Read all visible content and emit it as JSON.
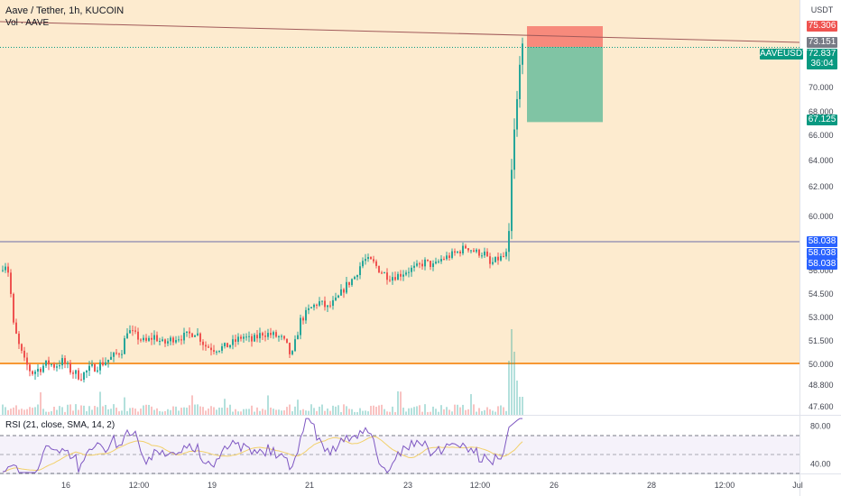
{
  "header": {
    "title": "Aave / Tether, 1h, KUCOIN",
    "volume_label": "Vol · AAVE",
    "rsi_label": "RSI (21, close, SMA, 14, 2)"
  },
  "currency": "USDT",
  "symbol_tag": "AAVEUSDT",
  "countdown": "36:04",
  "colors": {
    "up": "#26a69a",
    "down": "#ef5350",
    "target_zone": "#80c4a4",
    "stop_zone": "#f78a7c",
    "highlight_bg": "#fdebcf",
    "trendline": "#a15a5a",
    "support_line": "#f57c00",
    "resistance_line": "#6a6ea8",
    "blue_tag": "#2962ff",
    "green_tag": "#089981",
    "rsi_line": "#7e57c2",
    "rsi_ma": "#f2d06b"
  },
  "chart_data": {
    "type": "candlestick",
    "price_axis": {
      "ticks": [
        "70.000",
        "68.000",
        "66.000",
        "64.000",
        "62.000",
        "60.000",
        "56.000",
        "54.500",
        "53.000",
        "51.500",
        "50.000",
        "48.800",
        "47.600"
      ],
      "tick_values": [
        70,
        68,
        66,
        64,
        62,
        60,
        56,
        54.5,
        53,
        51.5,
        50,
        48.8,
        47.6
      ]
    },
    "x_axis": {
      "labels": [
        "16",
        "12:00",
        "19",
        "21",
        "23",
        "12:00",
        "26",
        "28",
        "12:00",
        "Jul"
      ]
    },
    "price_labels": {
      "stop": "75.306",
      "trendline": "73.151",
      "current": "72.837",
      "target": "67.125",
      "level_1": "58.038",
      "level_2": "58.038",
      "level_3": "58.038"
    },
    "levels": {
      "stop_loss": 75.306,
      "entry": 72.837,
      "take_profit": 67.125,
      "resistance": 58.038,
      "support": 50.1
    },
    "rsi_axis": {
      "ticks": [
        "80.00",
        "40.00"
      ],
      "tick_values": [
        80,
        40
      ],
      "range": [
        30,
        90
      ]
    },
    "series_description": "AAVEUSDT hourly: drop from ~56 to ~49.3, range 49.3-52.5, climb to ~57.8, sideways near 57, then spike to ~73.6"
  }
}
